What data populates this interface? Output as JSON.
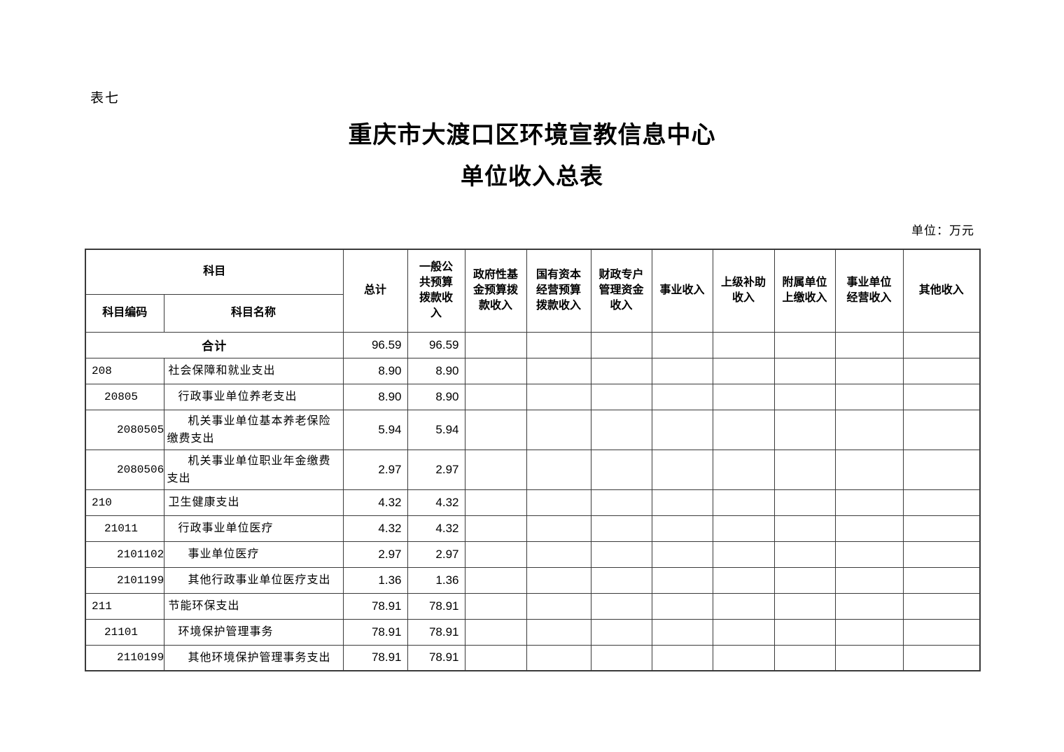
{
  "page": {
    "table_label": "表七",
    "title_line1": "重庆市大渡口区环境宣教信息中心",
    "title_line2": "单位收入总表",
    "unit_note": "单位：万元"
  },
  "table": {
    "header": {
      "subject": "科目",
      "subject_code": "科目编码",
      "subject_name": "科目名称",
      "columns": [
        "总计",
        "一般公共预算拨款收入",
        "政府性基金预算拨款收入",
        "国有资本经营预算拨款收入",
        "财政专户管理资金收入",
        "事业收入",
        "上级补助收入",
        "附属单位上缴收入",
        "事业单位经营收入",
        "其他收入"
      ]
    },
    "total_row": {
      "label": "合计",
      "values": [
        "96.59",
        "96.59",
        "",
        "",
        "",
        "",
        "",
        "",
        "",
        ""
      ]
    },
    "rows": [
      {
        "code": "208",
        "name": "社会保障和就业支出",
        "level": 0,
        "values": [
          "8.90",
          "8.90",
          "",
          "",
          "",
          "",
          "",
          "",
          "",
          ""
        ]
      },
      {
        "code": "20805",
        "name": "行政事业单位养老支出",
        "level": 1,
        "values": [
          "8.90",
          "8.90",
          "",
          "",
          "",
          "",
          "",
          "",
          "",
          ""
        ]
      },
      {
        "code": "2080505",
        "name": "机关事业单位基本养老保险缴费支出",
        "level": 2,
        "values": [
          "5.94",
          "5.94",
          "",
          "",
          "",
          "",
          "",
          "",
          "",
          ""
        ]
      },
      {
        "code": "2080506",
        "name": "机关事业单位职业年金缴费支出",
        "level": 2,
        "values": [
          "2.97",
          "2.97",
          "",
          "",
          "",
          "",
          "",
          "",
          "",
          ""
        ]
      },
      {
        "code": "210",
        "name": "卫生健康支出",
        "level": 0,
        "values": [
          "4.32",
          "4.32",
          "",
          "",
          "",
          "",
          "",
          "",
          "",
          ""
        ]
      },
      {
        "code": "21011",
        "name": "行政事业单位医疗",
        "level": 1,
        "values": [
          "4.32",
          "4.32",
          "",
          "",
          "",
          "",
          "",
          "",
          "",
          ""
        ]
      },
      {
        "code": "2101102",
        "name": "事业单位医疗",
        "level": 2,
        "values": [
          "2.97",
          "2.97",
          "",
          "",
          "",
          "",
          "",
          "",
          "",
          ""
        ]
      },
      {
        "code": "2101199",
        "name": "其他行政事业单位医疗支出",
        "level": 2,
        "values": [
          "1.36",
          "1.36",
          "",
          "",
          "",
          "",
          "",
          "",
          "",
          ""
        ]
      },
      {
        "code": "211",
        "name": "节能环保支出",
        "level": 0,
        "values": [
          "78.91",
          "78.91",
          "",
          "",
          "",
          "",
          "",
          "",
          "",
          ""
        ]
      },
      {
        "code": "21101",
        "name": "环境保护管理事务",
        "level": 1,
        "values": [
          "78.91",
          "78.91",
          "",
          "",
          "",
          "",
          "",
          "",
          "",
          ""
        ]
      },
      {
        "code": "2110199",
        "name": "其他环境保护管理事务支出",
        "level": 2,
        "values": [
          "78.91",
          "78.91",
          "",
          "",
          "",
          "",
          "",
          "",
          "",
          ""
        ]
      }
    ]
  }
}
